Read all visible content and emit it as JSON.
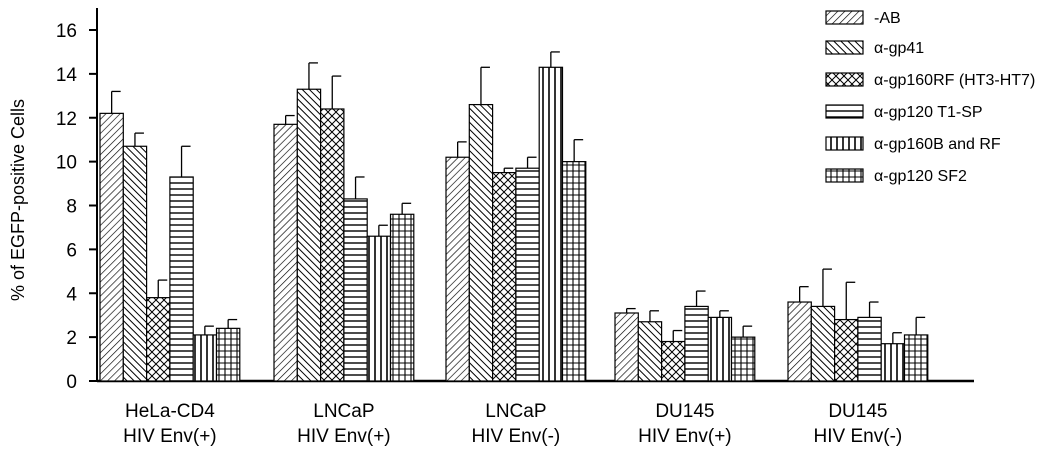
{
  "chart_data": {
    "type": "bar",
    "title": "",
    "xlabel": "",
    "ylabel": "% of EGFP-positive Cells",
    "ylim": [
      0,
      16
    ],
    "yticks": [
      0,
      2,
      4,
      6,
      8,
      10,
      12,
      14,
      16
    ],
    "grid": false,
    "legend_position": "top-right",
    "categories": [
      [
        "HeLa-CD4",
        "HIV Env(+)"
      ],
      [
        "LNCaP",
        "HIV Env(+)"
      ],
      [
        "LNCaP",
        "HIV Env(-)"
      ],
      [
        "DU145",
        "HIV Env(+)"
      ],
      [
        "DU145",
        "HIV Env(-)"
      ]
    ],
    "series": [
      {
        "name": "-AB",
        "pattern": "diag-thin",
        "values": [
          12.2,
          11.7,
          10.2,
          3.1,
          3.6
        ],
        "errors": [
          1.0,
          0.4,
          0.7,
          0.2,
          0.7
        ]
      },
      {
        "name": "α-gp41",
        "pattern": "diag-thick",
        "values": [
          10.7,
          13.3,
          12.6,
          2.7,
          3.4
        ],
        "errors": [
          0.6,
          1.2,
          1.7,
          0.5,
          1.7
        ]
      },
      {
        "name": "α-gp160RF (HT3-HT7)",
        "pattern": "cross",
        "values": [
          3.8,
          12.4,
          9.5,
          1.8,
          2.8
        ],
        "errors": [
          0.8,
          1.5,
          0.2,
          0.5,
          1.7
        ]
      },
      {
        "name": "α-gp120 T1-SP",
        "pattern": "horizontal",
        "values": [
          9.3,
          8.3,
          9.7,
          3.4,
          2.9
        ],
        "errors": [
          1.4,
          1.0,
          0.5,
          0.7,
          0.7
        ]
      },
      {
        "name": "α-gp160B and RF",
        "pattern": "vertical",
        "values": [
          2.1,
          6.6,
          14.3,
          2.9,
          1.7
        ],
        "errors": [
          0.4,
          0.5,
          0.7,
          0.3,
          0.5
        ]
      },
      {
        "name": "α-gp120 SF2",
        "pattern": "grid",
        "values": [
          2.4,
          7.6,
          10.0,
          2.0,
          2.1
        ],
        "errors": [
          0.4,
          0.5,
          1.0,
          0.5,
          0.8
        ]
      }
    ]
  }
}
